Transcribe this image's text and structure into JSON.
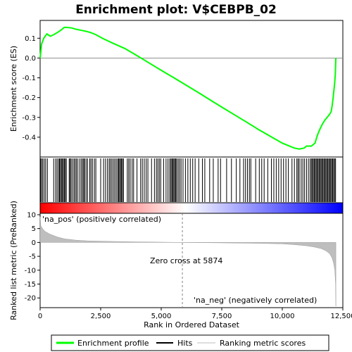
{
  "chart_data": {
    "type": "line",
    "title": "Enrichment plot: V$CEBPB_02",
    "panels": {
      "enrichment": {
        "ylabel": "Enrichment score (ES)",
        "ylim": [
          -0.5,
          0.19
        ],
        "yticks": [
          0.1,
          0.0,
          -0.1,
          -0.2,
          -0.3,
          -0.4
        ],
        "ytick_labels": [
          "0.1",
          "0.0",
          "-0.1",
          "-0.2",
          "-0.3",
          "-0.4"
        ],
        "series": [
          {
            "name": "Enrichment profile",
            "color": "#00ff00",
            "x": [
              0,
              60,
              150,
              280,
              420,
              560,
              700,
              850,
              1000,
              1100,
              1300,
              1500,
              1700,
              1900,
              2100,
              2300,
              2600,
              3000,
              3500,
              4000,
              4500,
              5000,
              5500,
              6000,
              6500,
              7000,
              7500,
              8000,
              8500,
              9000,
              9500,
              10000,
              10300,
              10500,
              10700,
              10900,
              11000,
              11200,
              11350,
              11450,
              11550,
              11650,
              11750,
              11850,
              11950,
              12020,
              12060,
              12100,
              12130,
              12160,
              12190,
              12210
            ],
            "y": [
              0.0,
              0.07,
              0.1,
              0.122,
              0.11,
              0.118,
              0.128,
              0.14,
              0.155,
              0.155,
              0.152,
              0.145,
              0.14,
              0.135,
              0.128,
              0.118,
              0.098,
              0.075,
              0.048,
              0.012,
              -0.025,
              -0.062,
              -0.098,
              -0.135,
              -0.172,
              -0.21,
              -0.248,
              -0.285,
              -0.322,
              -0.36,
              -0.395,
              -0.43,
              -0.445,
              -0.455,
              -0.46,
              -0.455,
              -0.445,
              -0.445,
              -0.43,
              -0.39,
              -0.36,
              -0.335,
              -0.315,
              -0.3,
              -0.285,
              -0.27,
              -0.24,
              -0.2,
              -0.165,
              -0.13,
              -0.08,
              0.0
            ]
          }
        ]
      },
      "ranked_metric": {
        "ylabel": "Ranked list metric (PreRanked)",
        "ylim": [
          -23.5,
          10.5
        ],
        "yticks": [
          10,
          5,
          0,
          -5,
          -10,
          -15,
          -20
        ],
        "ytick_labels": [
          "10",
          "5",
          "0",
          "-5",
          "-10",
          "-15",
          "-20"
        ],
        "series": [
          {
            "name": "Ranking metric scores",
            "color": "#bebebe",
            "x": [
              0,
              30,
              100,
              200,
              400,
              700,
              1000,
              1500,
              2000,
              3000,
              4000,
              5000,
              5874,
              7000,
              8000,
              9000,
              10000,
              10500,
              11000,
              11300,
              11600,
              11800,
              11950,
              12050,
              12120,
              12170,
              12200,
              12212
            ],
            "y": [
              9.2,
              6.0,
              5.0,
              4.0,
              3.0,
              2.0,
              1.3,
              0.8,
              0.55,
              0.35,
              0.2,
              0.1,
              0.0,
              -0.1,
              -0.2,
              -0.3,
              -0.5,
              -0.8,
              -1.2,
              -1.6,
              -2.2,
              -3.0,
              -4.0,
              -5.5,
              -7.5,
              -10.0,
              -15.0,
              -23.0
            ]
          }
        ],
        "annotations": {
          "pos_label": "'na_pos' (positively correlated)",
          "neg_label": "'na_neg' (negatively correlated)",
          "zero_cross_label": "Zero cross at 5874",
          "zero_cross": 5874
        }
      }
    },
    "xlabel": "Rank in Ordered Dataset",
    "xlim": [
      0,
      12500
    ],
    "xticks": [
      0,
      2500,
      5000,
      7500,
      10000,
      12500
    ],
    "xtick_labels": [
      "0",
      "2,500",
      "5,000",
      "7,500",
      "10,000",
      "12,500"
    ],
    "n_genes": 12212,
    "hits": [
      20,
      60,
      110,
      170,
      230,
      300,
      560,
      640,
      700,
      760,
      800,
      840,
      880,
      920,
      960,
      1000,
      1040,
      1080,
      1200,
      1240,
      1280,
      1340,
      1400,
      1450,
      1500,
      1560,
      1640,
      1700,
      1760,
      1800,
      1840,
      1900,
      1960,
      2050,
      2100,
      2160,
      2240,
      2300,
      2500,
      2620,
      2700,
      2780,
      2850,
      2900,
      2960,
      3020,
      3080,
      3140,
      3200,
      3240,
      3280,
      3320,
      3360,
      3400,
      3440,
      3600,
      3660,
      3720,
      3800,
      3860,
      4000,
      4150,
      4220,
      4300,
      4380,
      4450,
      4600,
      4720,
      4800,
      4860,
      4920,
      4980,
      5100,
      5200,
      5280,
      5350,
      5400,
      5440,
      5480,
      5520,
      5560,
      5600,
      5640,
      5700,
      5760,
      5820,
      5900,
      6000,
      6100,
      6200,
      6300,
      6400,
      6550,
      6700,
      6800,
      7000,
      7150,
      7350,
      7450,
      7700,
      7900,
      8100,
      8250,
      8400,
      8480,
      8560,
      8640,
      8700,
      8900,
      9050,
      9150,
      9250,
      9400,
      9550,
      9650,
      9750,
      9850,
      9950,
      10050,
      10150,
      10250,
      10400,
      10500,
      10600,
      10650,
      10700,
      10780,
      10850,
      10920,
      11000,
      11080,
      11150,
      11200,
      11240,
      11280,
      11320,
      11360,
      11400,
      11440,
      11480,
      11520,
      11560,
      11600,
      11640,
      11680,
      11720,
      11760,
      11800,
      11840,
      11880,
      11920,
      11960,
      12000,
      12040,
      12080,
      12120,
      12160,
      12200
    ],
    "legend": [
      "Enrichment profile",
      "Hits",
      "Ranking metric scores"
    ],
    "colors": {
      "enrichment_line": "#00ff00",
      "hits": "#000000",
      "metric_fill": "#bebebe",
      "zero_line": "#808080",
      "pos_text": "#cc0000",
      "neg_text": "#0000cc",
      "gradient_start": "#ff0000",
      "gradient_mid": "#ffffff",
      "gradient_end": "#0000ff"
    }
  }
}
